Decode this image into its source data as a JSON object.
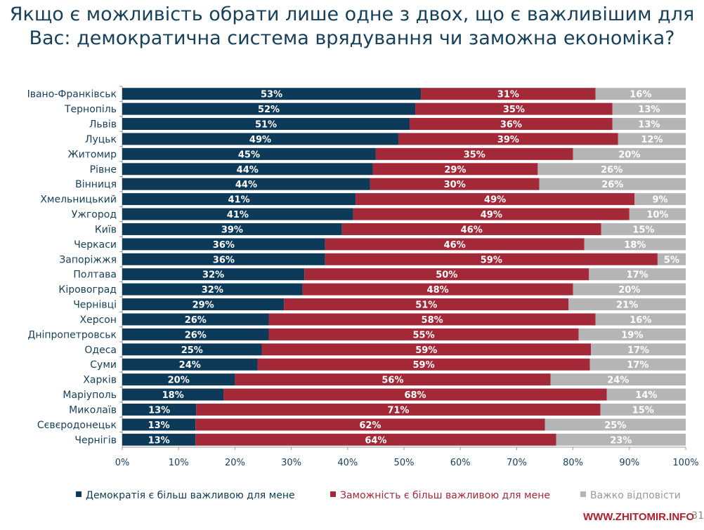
{
  "chart_data": {
    "type": "bar",
    "orientation": "horizontal",
    "stacked": true,
    "title": "Якщо є можливість обрати лише одне з двох, що є важливішим для Вас: демократична система врядування чи заможна економіка?",
    "categories": [
      "Івано-Франківськ",
      "Тернопіль",
      "Львів",
      "Луцьк",
      "Житомир",
      "Рівне",
      "Вінниця",
      "Хмельницький",
      "Ужгород",
      "Київ",
      "Черкаси",
      "Запоріжжя",
      "Полтава",
      "Кіровоград",
      "Чернівці",
      "Херсон",
      "Дніпропетровськ",
      "Одеса",
      "Суми",
      "Харків",
      "Маріуполь",
      "Миколаїв",
      "Сєвєродонецьк",
      "Чернігів"
    ],
    "series": [
      {
        "name": "Демократія є більш важливою для мене",
        "color": "#0e3a5a",
        "values": [
          53,
          52,
          51,
          49,
          45,
          44,
          44,
          41,
          41,
          39,
          36,
          36,
          32,
          32,
          29,
          26,
          26,
          25,
          24,
          20,
          18,
          13,
          13,
          13
        ]
      },
      {
        "name": "Заможність є більш важливою для мене",
        "color": "#a32838",
        "values": [
          31,
          35,
          36,
          39,
          35,
          29,
          30,
          49,
          49,
          46,
          46,
          59,
          50,
          48,
          51,
          58,
          55,
          59,
          59,
          56,
          68,
          71,
          62,
          64
        ]
      },
      {
        "name": "Важко відповісти",
        "color": "#b5b5b5",
        "values": [
          16,
          13,
          13,
          12,
          20,
          26,
          26,
          9,
          10,
          15,
          18,
          5,
          17,
          20,
          21,
          16,
          19,
          17,
          17,
          24,
          14,
          15,
          25,
          23
        ]
      }
    ],
    "xlim": [
      0,
      100
    ],
    "xticks": [
      "0%",
      "10%",
      "20%",
      "30%",
      "40%",
      "50%",
      "60%",
      "70%",
      "80%",
      "90%",
      "100%"
    ],
    "value_suffix": "%",
    "legend": "bottom",
    "grid": false
  },
  "footer": {
    "watermark": "WWW.ZHITOMIR.INFO",
    "slide_number": "31"
  }
}
